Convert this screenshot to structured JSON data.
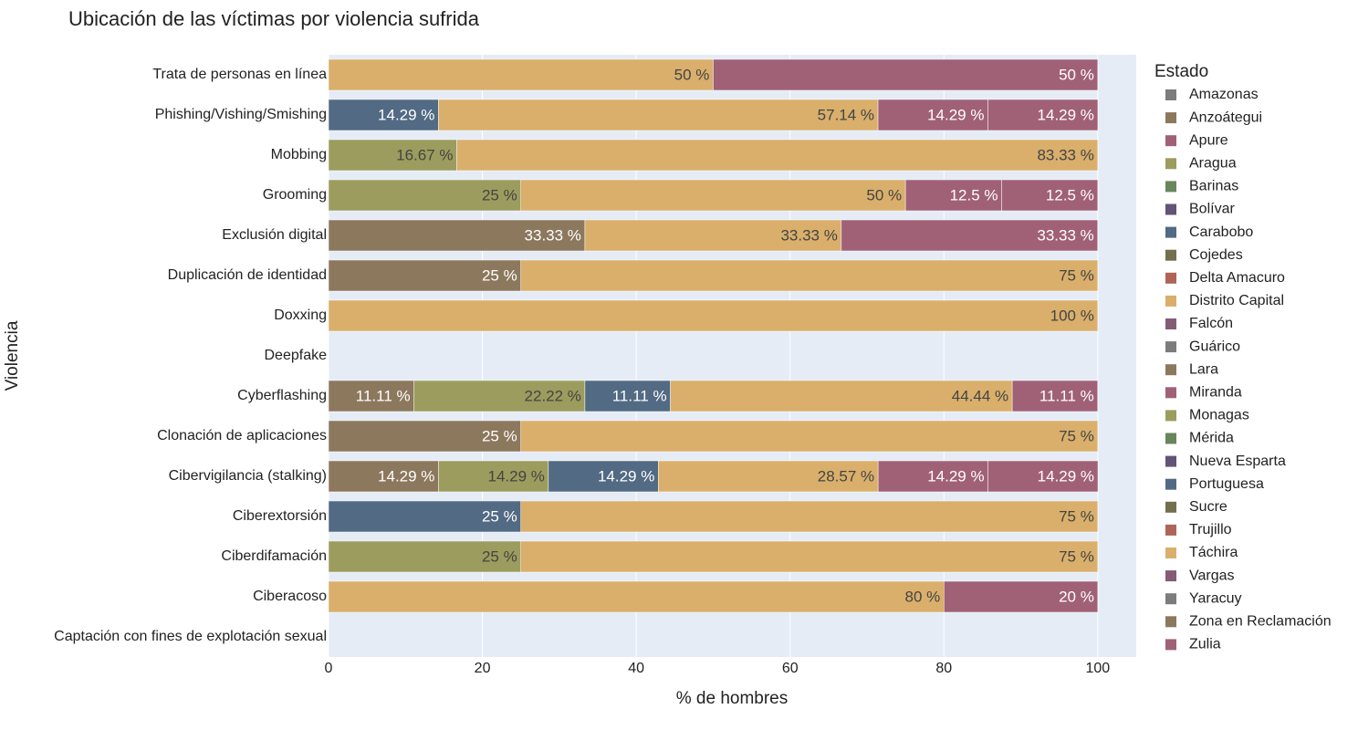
{
  "chart_data": {
    "type": "bar",
    "orientation": "horizontal",
    "barmode": "stack",
    "title": "Ubicación de las víctimas por violencia sufrida",
    "xlabel": "% de hombres",
    "ylabel": "Violencia",
    "legend_title": "Estado",
    "xlim": [
      0,
      105
    ],
    "xticks": [
      0,
      20,
      40,
      60,
      80,
      100
    ],
    "grid": true,
    "legend": "right",
    "categories": [
      "Trata de personas en línea",
      "Phishing/Vishing/Smishing",
      "Mobbing",
      "Grooming",
      "Exclusión digital",
      "Duplicación de identidad",
      "Doxxing",
      "Deepfake",
      "Cyberflashing",
      "Clonación de aplicaciones",
      "Cibervigilancia (stalking)",
      "Ciberextorsión",
      "Ciberdifamación",
      "Ciberacoso",
      "Captación con fines de explotación sexual"
    ],
    "series": [
      {
        "name": "Amazonas",
        "color": "#7c7c7c",
        "values": [
          null,
          null,
          null,
          null,
          null,
          null,
          null,
          null,
          null,
          null,
          null,
          null,
          null,
          null,
          null
        ]
      },
      {
        "name": "Anzoátegui",
        "color": "#8c785d",
        "values": [
          null,
          null,
          null,
          null,
          33.33,
          25,
          null,
          null,
          11.11,
          25,
          14.29,
          null,
          null,
          null,
          null
        ],
        "value_labels": [
          null,
          null,
          null,
          null,
          "33.33 %",
          "25 %",
          null,
          null,
          "11.11 %",
          "25 %",
          "14.29 %",
          null,
          null,
          null,
          null
        ]
      },
      {
        "name": "Apure",
        "color": "#a06177",
        "values": [
          null,
          null,
          null,
          null,
          null,
          null,
          null,
          null,
          null,
          null,
          null,
          null,
          null,
          null,
          null
        ]
      },
      {
        "name": "Aragua",
        "color": "#9c9c5e",
        "values": [
          null,
          null,
          16.67,
          25,
          null,
          null,
          null,
          null,
          22.22,
          null,
          14.29,
          null,
          25,
          null,
          null
        ],
        "value_labels": [
          null,
          null,
          "16.67 %",
          "25 %",
          null,
          null,
          null,
          null,
          "22.22 %",
          null,
          "14.29 %",
          null,
          "25 %",
          null,
          null
        ]
      },
      {
        "name": "Barinas",
        "color": "#68855c",
        "values": [
          null,
          null,
          null,
          null,
          null,
          null,
          null,
          null,
          null,
          null,
          null,
          null,
          null,
          null,
          null
        ]
      },
      {
        "name": "Bolívar",
        "color": "#625377",
        "values": [
          null,
          null,
          null,
          null,
          null,
          null,
          null,
          null,
          null,
          null,
          null,
          null,
          null,
          null,
          null
        ]
      },
      {
        "name": "Carabobo",
        "color": "#526a83",
        "values": [
          null,
          14.29,
          null,
          null,
          null,
          null,
          null,
          null,
          11.11,
          null,
          14.29,
          25,
          null,
          null,
          null
        ],
        "value_labels": [
          null,
          "14.29 %",
          null,
          null,
          null,
          null,
          null,
          null,
          "11.11 %",
          null,
          "14.29 %",
          "25 %",
          null,
          null,
          null
        ]
      },
      {
        "name": "Cojedes",
        "color": "#736f4c",
        "values": [
          null,
          null,
          null,
          null,
          null,
          null,
          null,
          null,
          null,
          null,
          null,
          null,
          null,
          null,
          null
        ]
      },
      {
        "name": "Delta Amacuro",
        "color": "#af6458",
        "values": [
          null,
          null,
          null,
          null,
          null,
          null,
          null,
          null,
          null,
          null,
          null,
          null,
          null,
          null,
          null
        ]
      },
      {
        "name": "Distrito Capital",
        "color": "#d9af6b",
        "values": [
          50,
          57.14,
          83.33,
          50,
          33.33,
          75,
          100,
          null,
          44.44,
          75,
          28.57,
          75,
          75,
          80,
          null
        ],
        "value_labels": [
          "50 %",
          "57.14 %",
          "83.33 %",
          "50 %",
          "33.33 %",
          "75 %",
          "100 %",
          null,
          "44.44 %",
          "75 %",
          "28.57 %",
          "75 %",
          "75 %",
          "80 %",
          null
        ]
      },
      {
        "name": "Falcón",
        "color": "#855c75",
        "values": [
          null,
          null,
          null,
          null,
          null,
          null,
          null,
          null,
          null,
          null,
          null,
          null,
          null,
          null,
          null
        ]
      },
      {
        "name": "Guárico",
        "color": "#7c7c7c",
        "values": [
          null,
          null,
          null,
          null,
          null,
          null,
          null,
          null,
          null,
          null,
          null,
          null,
          null,
          null,
          null
        ]
      },
      {
        "name": "Lara",
        "color": "#8c785d",
        "values": [
          null,
          null,
          null,
          null,
          null,
          null,
          null,
          null,
          null,
          null,
          null,
          null,
          null,
          null,
          null
        ]
      },
      {
        "name": "Miranda",
        "color": "#a06177",
        "values": [
          50,
          14.29,
          null,
          12.5,
          33.33,
          null,
          null,
          null,
          11.11,
          null,
          14.29,
          null,
          null,
          20,
          null
        ],
        "value_labels": [
          "50 %",
          "14.29 %",
          null,
          "12.5 %",
          "33.33 %",
          null,
          null,
          null,
          "11.11 %",
          null,
          "14.29 %",
          null,
          null,
          "20 %",
          null
        ]
      },
      {
        "name": "Monagas",
        "color": "#9c9c5e",
        "values": [
          null,
          null,
          null,
          null,
          null,
          null,
          null,
          null,
          null,
          null,
          null,
          null,
          null,
          null,
          null
        ]
      },
      {
        "name": "Mérida",
        "color": "#68855c",
        "values": [
          null,
          null,
          null,
          null,
          null,
          null,
          null,
          null,
          null,
          null,
          null,
          null,
          null,
          null,
          null
        ]
      },
      {
        "name": "Nueva Esparta",
        "color": "#625377",
        "values": [
          null,
          null,
          null,
          null,
          null,
          null,
          null,
          null,
          null,
          null,
          null,
          null,
          null,
          null,
          null
        ]
      },
      {
        "name": "Portuguesa",
        "color": "#526a83",
        "values": [
          null,
          null,
          null,
          null,
          null,
          null,
          null,
          null,
          null,
          null,
          null,
          null,
          null,
          null,
          null
        ]
      },
      {
        "name": "Sucre",
        "color": "#736f4c",
        "values": [
          null,
          null,
          null,
          null,
          null,
          null,
          null,
          null,
          null,
          null,
          null,
          null,
          null,
          null,
          null
        ]
      },
      {
        "name": "Trujillo",
        "color": "#af6458",
        "values": [
          null,
          null,
          null,
          null,
          null,
          null,
          null,
          null,
          null,
          null,
          null,
          null,
          null,
          null,
          null
        ]
      },
      {
        "name": "Táchira",
        "color": "#d9af6b",
        "values": [
          null,
          null,
          null,
          null,
          null,
          null,
          null,
          null,
          null,
          null,
          null,
          null,
          null,
          null,
          null
        ]
      },
      {
        "name": "Vargas",
        "color": "#855c75",
        "values": [
          null,
          null,
          null,
          null,
          null,
          null,
          null,
          null,
          null,
          null,
          null,
          null,
          null,
          null,
          null
        ]
      },
      {
        "name": "Yaracuy",
        "color": "#7c7c7c",
        "values": [
          null,
          null,
          null,
          null,
          null,
          null,
          null,
          null,
          null,
          null,
          null,
          null,
          null,
          null,
          null
        ]
      },
      {
        "name": "Zona en Reclamación",
        "color": "#8c785d",
        "values": [
          null,
          null,
          null,
          null,
          null,
          null,
          null,
          null,
          null,
          null,
          null,
          null,
          null,
          null,
          null
        ]
      },
      {
        "name": "Zulia",
        "color": "#a06177",
        "values": [
          null,
          14.29,
          null,
          12.5,
          null,
          null,
          null,
          null,
          null,
          null,
          14.29,
          null,
          null,
          null,
          null
        ],
        "value_labels": [
          null,
          "14.29 %",
          null,
          "12.5 %",
          null,
          null,
          null,
          null,
          null,
          null,
          "14.29 %",
          null,
          null,
          null,
          null
        ]
      }
    ]
  }
}
